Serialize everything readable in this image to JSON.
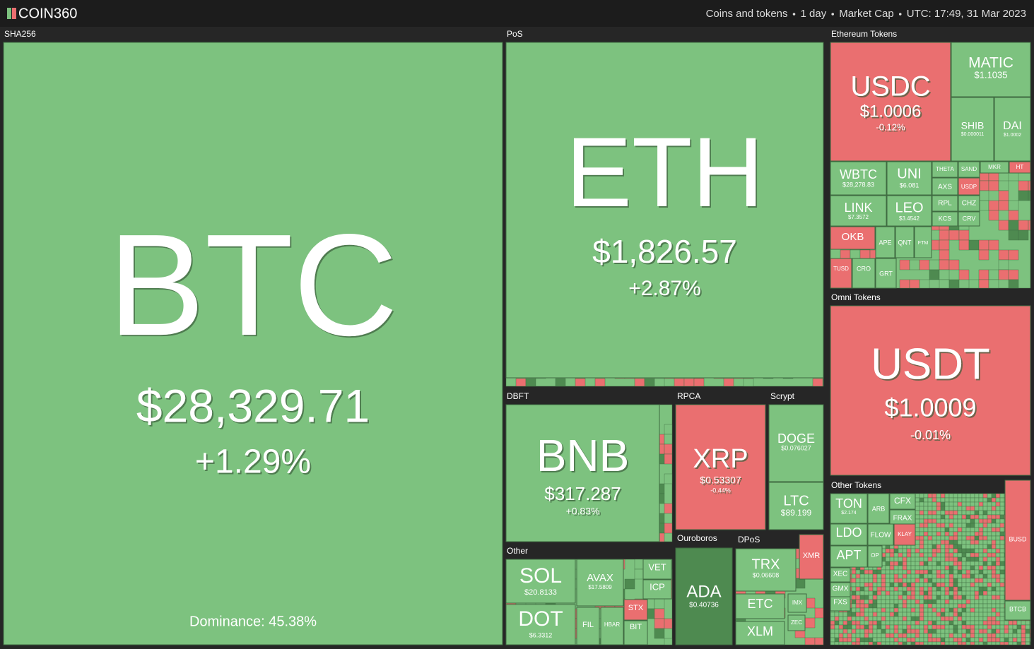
{
  "header": {
    "logo": "COIN360",
    "filters": [
      "Coins and tokens",
      "1 day",
      "Market Cap",
      "UTC: 17:49, 31 Mar 2023"
    ]
  },
  "groups": [
    {
      "name": "SHA256",
      "tiles": [
        {
          "symbol": "BTC",
          "price": "$28,329.71",
          "change": "+1.29%"
        }
      ],
      "note": "Dominance: 45.38%"
    },
    {
      "name": "PoS",
      "tiles": [
        {
          "symbol": "ETH",
          "price": "$1,826.57",
          "change": "+2.87%"
        }
      ]
    },
    {
      "name": "Ethereum Tokens",
      "tiles": [
        {
          "symbol": "USDC",
          "price": "$1.0006",
          "change": "-0.12%"
        },
        {
          "symbol": "MATIC",
          "price": "$1.1035"
        },
        {
          "symbol": "SHIB",
          "price": "$0.000011"
        },
        {
          "symbol": "DAI",
          "price": "$1.0002"
        },
        {
          "symbol": "WBTC",
          "price": "$28,278.83"
        },
        {
          "symbol": "UNI",
          "price": "$6.081"
        },
        {
          "symbol": "LINK",
          "price": "$7.3572"
        },
        {
          "symbol": "LEO",
          "price": "$3.4542"
        },
        {
          "symbol": "OKB"
        },
        {
          "symbol": "THETA"
        },
        {
          "symbol": "SAND"
        },
        {
          "symbol": "AXS"
        },
        {
          "symbol": "USDP"
        },
        {
          "symbol": "RPL"
        },
        {
          "symbol": "CHZ"
        },
        {
          "symbol": "KCS"
        },
        {
          "symbol": "CRV"
        },
        {
          "symbol": "APE"
        },
        {
          "symbol": "QNT"
        },
        {
          "symbol": "FTM"
        },
        {
          "symbol": "TUSD"
        },
        {
          "symbol": "CRO"
        },
        {
          "symbol": "GRT"
        },
        {
          "symbol": "MKR"
        },
        {
          "symbol": "HT"
        }
      ]
    },
    {
      "name": "Omni Tokens",
      "tiles": [
        {
          "symbol": "USDT",
          "price": "$1.0009",
          "change": "-0.01%"
        }
      ]
    },
    {
      "name": "Other Tokens",
      "tiles": [
        {
          "symbol": "TON",
          "price": "$2.174"
        },
        {
          "symbol": "LDO"
        },
        {
          "symbol": "APT"
        },
        {
          "symbol": "ARB"
        },
        {
          "symbol": "CFX"
        },
        {
          "symbol": "FRAX"
        },
        {
          "symbol": "FLOW"
        },
        {
          "symbol": "KLAY"
        },
        {
          "symbol": "OP"
        },
        {
          "symbol": "XEC"
        },
        {
          "symbol": "GMX"
        },
        {
          "symbol": "FXS"
        },
        {
          "symbol": "BUSD"
        },
        {
          "symbol": "BTCB"
        }
      ]
    },
    {
      "name": "DBFT",
      "tiles": [
        {
          "symbol": "BNB",
          "price": "$317.287",
          "change": "+0.83%"
        }
      ]
    },
    {
      "name": "RPCA",
      "tiles": [
        {
          "symbol": "XRP",
          "price": "$0.53307",
          "change": "-0.44%"
        }
      ]
    },
    {
      "name": "Scrypt",
      "tiles": [
        {
          "symbol": "DOGE",
          "price": "$0.076027"
        },
        {
          "symbol": "LTC",
          "price": "$89.199"
        }
      ]
    },
    {
      "name": "Other",
      "tiles": [
        {
          "symbol": "SOL",
          "price": "$20.8133"
        },
        {
          "symbol": "AVAX",
          "price": "$17.5809"
        },
        {
          "symbol": "VET"
        },
        {
          "symbol": "ICP"
        },
        {
          "symbol": "STX"
        },
        {
          "symbol": "DOT",
          "price": "$6.3312"
        },
        {
          "symbol": "FIL"
        },
        {
          "symbol": "HBAR"
        },
        {
          "symbol": "BIT"
        }
      ]
    },
    {
      "name": "Ouroboros",
      "tiles": [
        {
          "symbol": "ADA",
          "price": "$0.40736"
        }
      ]
    },
    {
      "name": "DPoS",
      "tiles": [
        {
          "symbol": "TRX",
          "price": "$0.06608"
        },
        {
          "symbol": "ETC"
        },
        {
          "symbol": "XLM"
        },
        {
          "symbol": "XMR"
        },
        {
          "symbol": "IMX"
        },
        {
          "symbol": "ZEC"
        }
      ]
    }
  ]
}
